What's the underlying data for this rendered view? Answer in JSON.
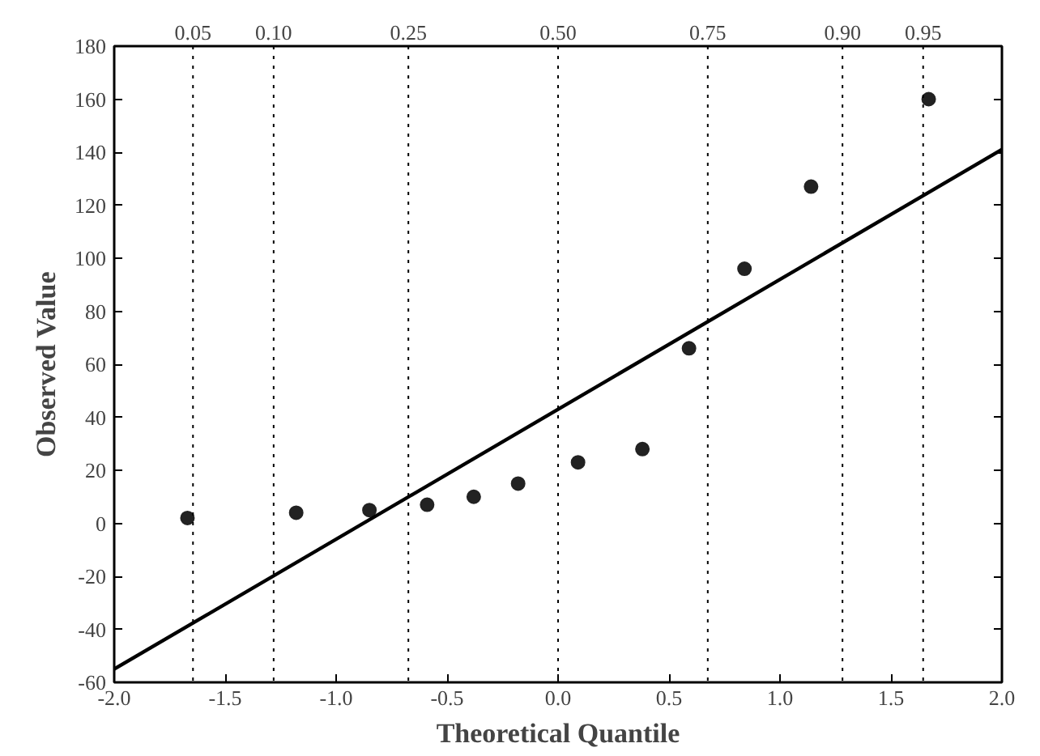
{
  "chart_data": {
    "type": "scatter",
    "xlabel": "Theoretical Quantile",
    "ylabel": "Observed Value",
    "xlim": [
      -2,
      2
    ],
    "ylim": [
      -60,
      180
    ],
    "xticks": [
      {
        "value": -2,
        "label": "-2.0"
      },
      {
        "value": -1.5,
        "label": "-1.5"
      },
      {
        "value": -1,
        "label": "-1.0"
      },
      {
        "value": -0.5,
        "label": "-0.5"
      },
      {
        "value": 0,
        "label": "0.0"
      },
      {
        "value": 0.5,
        "label": "0.5"
      },
      {
        "value": 1,
        "label": "1.0"
      },
      {
        "value": 1.5,
        "label": "1.5"
      },
      {
        "value": 2,
        "label": "2.0"
      }
    ],
    "yticks": [
      -60,
      -40,
      -20,
      0,
      20,
      40,
      60,
      80,
      100,
      120,
      140,
      160,
      180
    ],
    "ref_lines": [
      {
        "axis": "x",
        "value": -1.645,
        "line_style": "dotted"
      },
      {
        "axis": "x",
        "value": -1.2816,
        "line_style": "dotted"
      },
      {
        "axis": "x",
        "value": -0.6745,
        "line_style": "dotted"
      },
      {
        "axis": "x",
        "value": 0,
        "line_style": "dotted"
      },
      {
        "axis": "x",
        "value": 0.6745,
        "line_style": "dotted"
      },
      {
        "axis": "x",
        "value": 1.2816,
        "line_style": "dotted"
      },
      {
        "axis": "x",
        "value": 1.645,
        "line_style": "dotted"
      }
    ],
    "annotations": [
      "0.05",
      "0.10",
      "0.25",
      "0.50",
      "0.75",
      "0.90",
      "0.95"
    ],
    "marker": "circle",
    "series": [
      {
        "color": "#222222",
        "x": [
          -1.67,
          -1.18,
          -0.85,
          -0.59,
          -0.38,
          -0.18,
          0.09,
          0.38,
          0.59,
          0.84,
          1.14,
          1.67
        ],
        "values": [
          2,
          4,
          5,
          7,
          10,
          15,
          23,
          28,
          66,
          96,
          127,
          160
        ]
      },
      {
        "type": "line",
        "color": "#000000",
        "x": [
          -2,
          2
        ],
        "values": [
          -55,
          141
        ],
        "line_style": "solid",
        "marker": "none"
      }
    ]
  }
}
